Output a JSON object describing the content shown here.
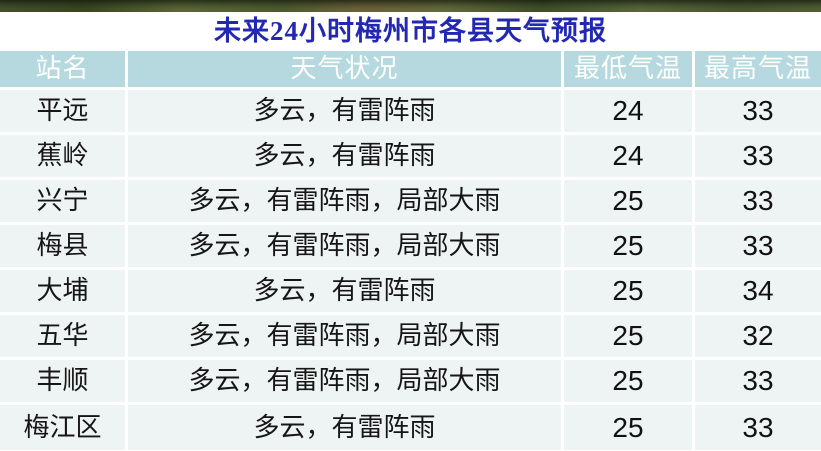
{
  "title": "未来24小时梅州市各县天气预报",
  "table": {
    "columns": [
      {
        "label": "站名"
      },
      {
        "label": "天气状况"
      },
      {
        "label": "最低气温"
      },
      {
        "label": "最高气温"
      }
    ],
    "rows": [
      {
        "station": "平远",
        "weather": "多云，有雷阵雨",
        "min_temp": "24",
        "max_temp": "33"
      },
      {
        "station": "蕉岭",
        "weather": "多云，有雷阵雨",
        "min_temp": "24",
        "max_temp": "33"
      },
      {
        "station": "兴宁",
        "weather": "多云，有雷阵雨，局部大雨",
        "min_temp": "25",
        "max_temp": "33"
      },
      {
        "station": "梅县",
        "weather": "多云，有雷阵雨，局部大雨",
        "min_temp": "25",
        "max_temp": "33"
      },
      {
        "station": "大埔",
        "weather": "多云，有雷阵雨",
        "min_temp": "25",
        "max_temp": "34"
      },
      {
        "station": "五华",
        "weather": "多云，有雷阵雨，局部大雨",
        "min_temp": "25",
        "max_temp": "32"
      },
      {
        "station": "丰顺",
        "weather": "多云，有雷阵雨，局部大雨",
        "min_temp": "25",
        "max_temp": "33"
      },
      {
        "station": "梅江区",
        "weather": "多云，有雷阵雨",
        "min_temp": "25",
        "max_temp": "33"
      }
    ]
  },
  "colors": {
    "title_text": "#2328b2",
    "header_bg": "#b5d9de",
    "header_text": "#ffffff",
    "row_bg": "#eef4f3",
    "divider": "#ffffff",
    "body_text": "#161616"
  }
}
